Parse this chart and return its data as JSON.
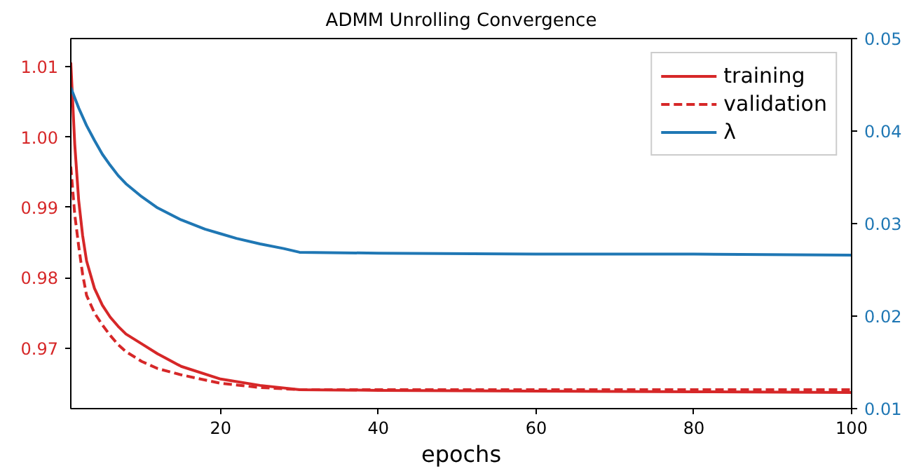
{
  "chart_data": {
    "type": "line",
    "title": "ADMM Unrolling Convergence",
    "xlabel": "epochs",
    "xlim": [
      1,
      100
    ],
    "xticks": [
      20,
      40,
      60,
      80,
      100
    ],
    "ylim": [
      0.9614,
      1.014
    ],
    "yticks": [
      0.97,
      0.98,
      0.99,
      {
        "value": 1,
        "label": "1.00"
      },
      1.01
    ],
    "y2lim": [
      0.01,
      0.05
    ],
    "y2ticks": [
      0.01,
      0.02,
      0.03,
      0.04,
      0.05
    ],
    "grid": false,
    "legend": "top right",
    "series": [
      {
        "name": "training",
        "color": "#d62728",
        "line_style": "solid",
        "x": [
          1,
          1.5,
          2,
          2.5,
          3,
          4,
          5,
          6,
          7,
          8,
          10,
          12,
          15,
          20,
          25,
          30,
          40,
          60,
          80,
          100
        ],
        "values": [
          1.0106,
          0.999,
          0.991,
          0.986,
          0.9824,
          0.9785,
          0.9761,
          0.9744,
          0.9731,
          0.972,
          0.9706,
          0.9692,
          0.9674,
          0.9656,
          0.9647,
          0.9641,
          0.964,
          0.9639,
          0.9638,
          0.9637
        ]
      },
      {
        "name": "validation",
        "color": "#d62728",
        "line_style": "dashed",
        "x": [
          1,
          1.5,
          2,
          2.5,
          3,
          4,
          5,
          6,
          7,
          8,
          10,
          12,
          15,
          20,
          25,
          30,
          40,
          60,
          80,
          100
        ],
        "values": [
          0.9958,
          0.989,
          0.9845,
          0.9805,
          0.9775,
          0.975,
          0.9733,
          0.9718,
          0.9705,
          0.9695,
          0.9681,
          0.9671,
          0.9662,
          0.965,
          0.9644,
          0.9641,
          0.9641,
          0.9641,
          0.9641,
          0.9641
        ]
      },
      {
        "name": "λ",
        "color": "#1f77b4",
        "line_style": "solid",
        "axis": "y2",
        "x": [
          1,
          2,
          3,
          4,
          5,
          6,
          7,
          8,
          10,
          12,
          15,
          18,
          20,
          22,
          25,
          28,
          30,
          40,
          60,
          80,
          100
        ],
        "values": [
          0.0447,
          0.0425,
          0.0406,
          0.039,
          0.0375,
          0.0363,
          0.0352,
          0.0343,
          0.0329,
          0.0317,
          0.0304,
          0.0294,
          0.0289,
          0.0284,
          0.0278,
          0.0273,
          0.0269,
          0.0268,
          0.0267,
          0.0267,
          0.0266
        ]
      }
    ]
  }
}
